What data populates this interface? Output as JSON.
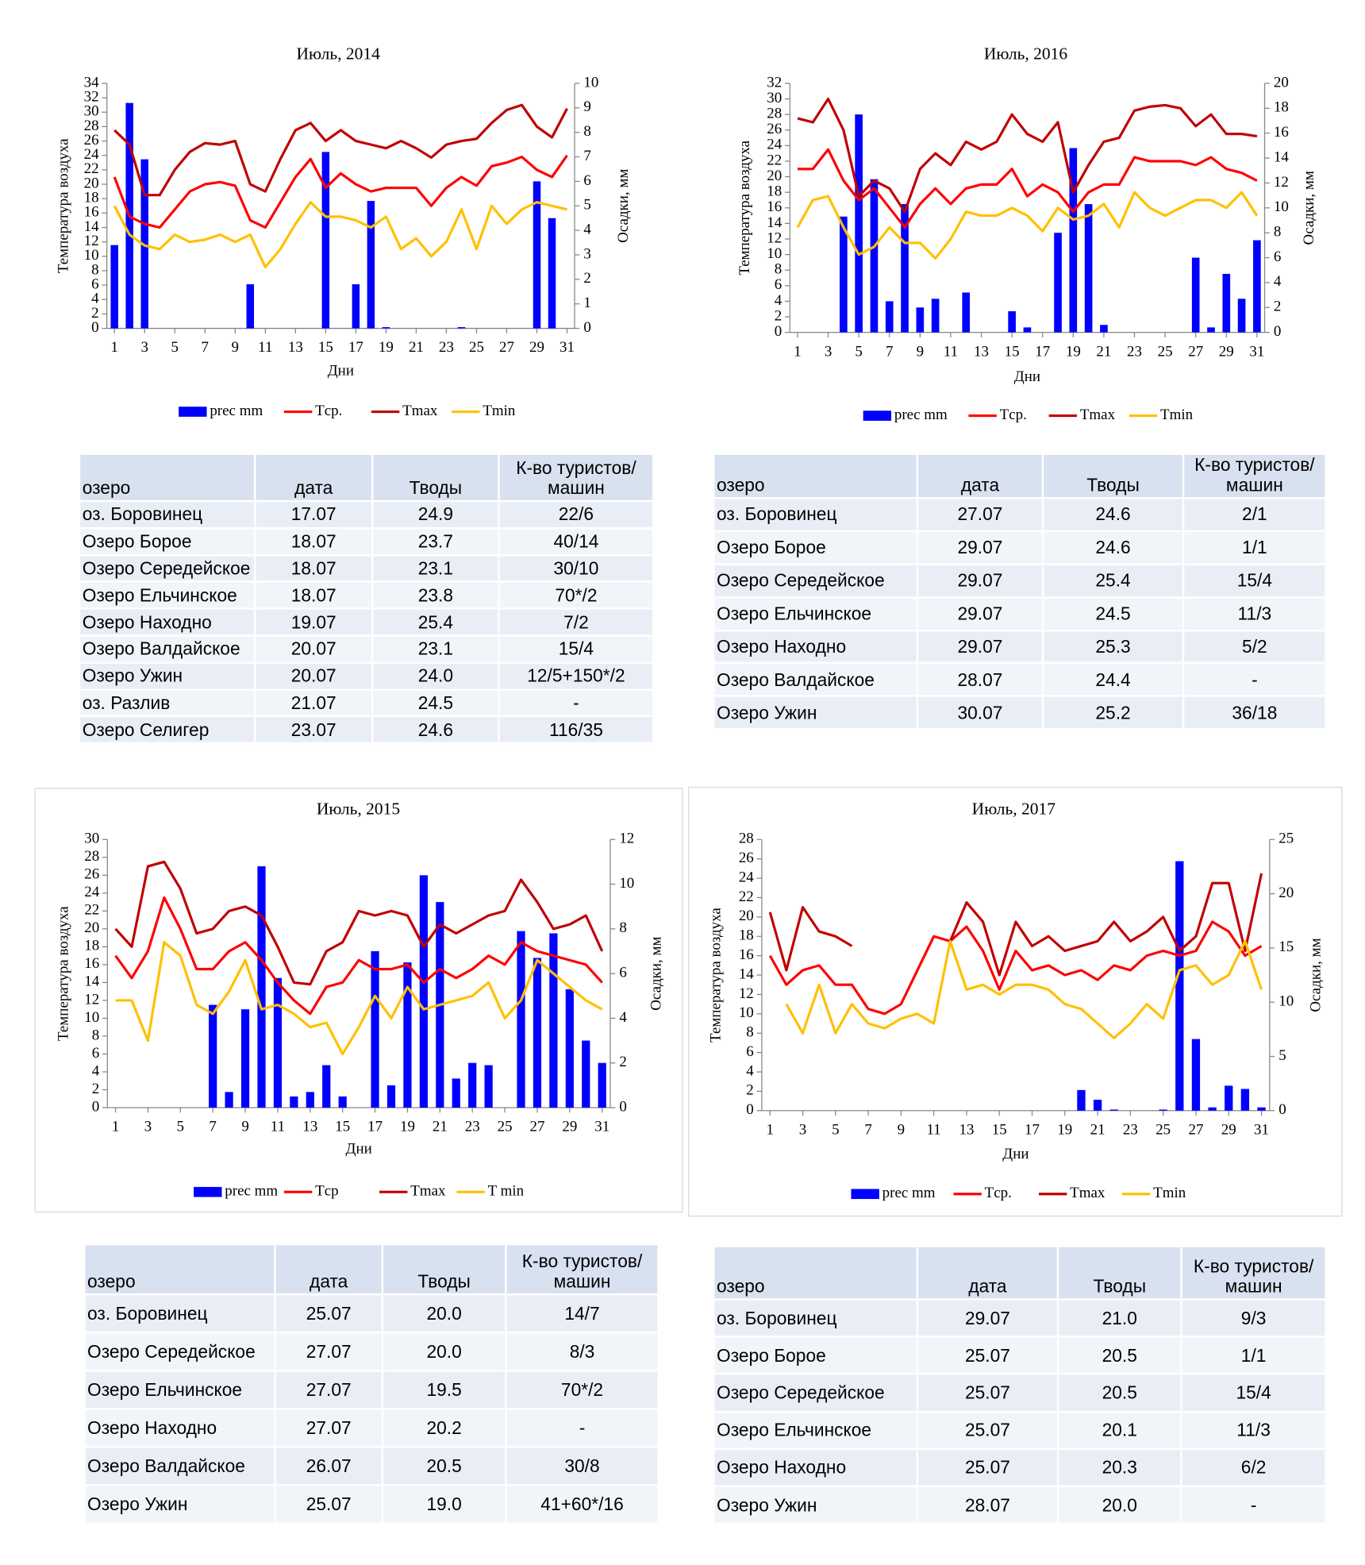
{
  "chart_data": [
    {
      "type": "combo",
      "title": "Июль, 2014",
      "x_label": "Дни",
      "y_label": "Температура воздуха",
      "y2_label": "Осадки, мм",
      "x": [
        1,
        2,
        3,
        4,
        5,
        6,
        7,
        8,
        9,
        10,
        11,
        12,
        13,
        14,
        15,
        16,
        17,
        18,
        19,
        20,
        21,
        22,
        23,
        24,
        25,
        26,
        27,
        28,
        29,
        30,
        31
      ],
      "xlim": [
        0.5,
        31.5
      ],
      "xticks": [
        1,
        3,
        5,
        7,
        9,
        11,
        13,
        15,
        17,
        19,
        21,
        23,
        25,
        27,
        29,
        31
      ],
      "ylim": [
        0,
        34
      ],
      "yticks": [
        0,
        2,
        4,
        6,
        8,
        10,
        12,
        14,
        16,
        18,
        20,
        22,
        24,
        26,
        28,
        30,
        32,
        34
      ],
      "y2lim": [
        0,
        10
      ],
      "y2ticks": [
        0,
        1,
        2,
        3,
        4,
        5,
        6,
        7,
        8,
        9,
        10
      ],
      "series": [
        {
          "name": "prec mm",
          "type": "bar",
          "axis": "y2",
          "color": "#0000ff",
          "values": [
            3.4,
            9.2,
            6.9,
            0,
            0,
            0,
            0,
            0,
            0,
            1.8,
            0,
            0,
            0,
            0,
            7.2,
            0,
            1.8,
            5.2,
            0.05,
            0,
            0,
            0,
            0,
            0.05,
            0,
            0,
            0,
            0,
            6,
            4.5,
            0
          ]
        },
        {
          "name": "Tср.",
          "type": "line",
          "color": "#ff0000",
          "values": [
            21,
            15.5,
            14.5,
            14,
            16.5,
            19,
            20,
            20.3,
            19.8,
            15,
            14,
            17.5,
            21,
            23.5,
            19.5,
            21.5,
            20,
            19,
            19.5,
            19.5,
            19.5,
            17,
            19.5,
            21,
            19.8,
            22.5,
            23,
            23.8,
            22,
            21,
            24
          ]
        },
        {
          "name": "Tmax",
          "type": "line",
          "color": "#c00000",
          "values": [
            27.5,
            25.5,
            18.5,
            18.5,
            22,
            24.5,
            25.7,
            25.5,
            26,
            20,
            19,
            23.5,
            27.5,
            28.5,
            26,
            27.5,
            26,
            25.5,
            25,
            26,
            25,
            23.7,
            25.5,
            26,
            26.3,
            28.5,
            30.3,
            31,
            28,
            26.5,
            30.5
          ]
        },
        {
          "name": "Tmin",
          "type": "line",
          "color": "#ffc000",
          "values": [
            17,
            13,
            11.5,
            11,
            13,
            12,
            12.3,
            13,
            12,
            13,
            8.5,
            11,
            14.5,
            17.5,
            15.5,
            15.5,
            15,
            14,
            15.5,
            11,
            12.5,
            10,
            12,
            16.5,
            11,
            17,
            14.5,
            16.5,
            17.5,
            17,
            16.5
          ]
        }
      ]
    },
    {
      "type": "combo",
      "title": "Июль, 2016",
      "x_label": "Дни",
      "y_label": "Температура воздуха",
      "y2_label": "Осадки, мм",
      "x": [
        1,
        2,
        3,
        4,
        5,
        6,
        7,
        8,
        9,
        10,
        11,
        12,
        13,
        14,
        15,
        16,
        17,
        18,
        19,
        20,
        21,
        22,
        23,
        24,
        25,
        26,
        27,
        28,
        29,
        30,
        31
      ],
      "xlim": [
        0.5,
        31.5
      ],
      "xticks": [
        1,
        3,
        5,
        7,
        9,
        11,
        13,
        15,
        17,
        19,
        21,
        23,
        25,
        27,
        29,
        31
      ],
      "ylim": [
        0,
        32
      ],
      "yticks": [
        0,
        2,
        4,
        6,
        8,
        10,
        12,
        14,
        16,
        18,
        20,
        22,
        24,
        26,
        28,
        30,
        32
      ],
      "y2lim": [
        0,
        20
      ],
      "y2ticks": [
        0,
        2,
        4,
        6,
        8,
        10,
        12,
        14,
        16,
        18,
        20
      ],
      "series": [
        {
          "name": "prec mm",
          "type": "bar",
          "axis": "y2",
          "color": "#0000ff",
          "values": [
            0,
            0,
            0,
            9.3,
            17.5,
            12.3,
            2.5,
            10.3,
            2,
            2.7,
            0,
            3.2,
            0,
            0,
            1.7,
            0.4,
            0,
            8,
            14.8,
            10.3,
            0.6,
            0,
            0,
            0,
            0,
            0,
            6,
            0.4,
            4.7,
            2.7,
            7.4
          ]
        },
        {
          "name": "Tср.",
          "type": "line",
          "color": "#ff0000",
          "values": [
            21,
            21,
            23.5,
            19.5,
            17,
            18.5,
            16,
            13.5,
            16.5,
            18.5,
            16.5,
            18.5,
            19,
            19,
            21,
            17.5,
            19,
            18,
            15.5,
            18,
            19,
            19,
            22.5,
            22,
            22,
            22,
            21.5,
            22.5,
            21,
            20.5,
            19.5
          ]
        },
        {
          "name": "Tmax",
          "type": "line",
          "color": "#c00000",
          "values": [
            27.5,
            27,
            30,
            26,
            17.5,
            19.5,
            18.5,
            15.5,
            21,
            23,
            21.5,
            24.5,
            23.5,
            24.5,
            28,
            25.5,
            24.5,
            27,
            18,
            21.5,
            24.5,
            25,
            28.5,
            29,
            29.2,
            28.8,
            26.5,
            28,
            25.5,
            25.5,
            25.2
          ]
        },
        {
          "name": "Tmin",
          "type": "line",
          "color": "#ffc000",
          "values": [
            13.5,
            17,
            17.5,
            13.5,
            10,
            11,
            13.5,
            11.5,
            11.5,
            9.5,
            12,
            15.5,
            15,
            15,
            16,
            15,
            13,
            16,
            14.5,
            15,
            16.5,
            13.5,
            18,
            16,
            15,
            16,
            17,
            17,
            16,
            18,
            15
          ]
        }
      ]
    },
    {
      "type": "combo",
      "title": "Июль, 2015",
      "x_label": "Дни",
      "y_label": "Температура воздуха",
      "y2_label": "Осадки, мм",
      "x": [
        1,
        2,
        3,
        4,
        5,
        6,
        7,
        8,
        9,
        10,
        11,
        12,
        13,
        14,
        15,
        16,
        17,
        18,
        19,
        20,
        21,
        22,
        23,
        24,
        25,
        26,
        27,
        28,
        29,
        30,
        31
      ],
      "xlim": [
        0.5,
        31.5
      ],
      "xticks": [
        1,
        3,
        5,
        7,
        9,
        11,
        13,
        15,
        17,
        19,
        21,
        23,
        25,
        27,
        29,
        31
      ],
      "ylim": [
        0,
        30
      ],
      "yticks": [
        0,
        2,
        4,
        6,
        8,
        10,
        12,
        14,
        16,
        18,
        20,
        22,
        24,
        26,
        28,
        30
      ],
      "y2lim": [
        0,
        12
      ],
      "y2ticks": [
        0,
        2,
        4,
        6,
        8,
        10,
        12
      ],
      "series": [
        {
          "name": "prec mm",
          "type": "bar",
          "axis": "y2",
          "color": "#0000ff",
          "values": [
            0,
            0,
            0,
            0,
            0,
            0,
            4.6,
            0.7,
            4.4,
            10.8,
            5.8,
            0.5,
            0.7,
            1.9,
            0.5,
            0,
            7,
            1,
            6.5,
            10.4,
            9.2,
            1.3,
            2,
            1.9,
            0,
            7.9,
            6.7,
            7.8,
            5.3,
            3,
            2
          ]
        },
        {
          "name": "Tср",
          "type": "line",
          "color": "#ff0000",
          "values": [
            17,
            14.5,
            17.5,
            23.5,
            20,
            15.5,
            15.5,
            17.5,
            18.5,
            16.5,
            14,
            12,
            10.5,
            13.5,
            14,
            16.5,
            15.5,
            15.5,
            16,
            14,
            15.5,
            14.5,
            15.5,
            17,
            16,
            18.5,
            17.5,
            17,
            16.5,
            16,
            14
          ]
        },
        {
          "name": "Tmax",
          "type": "line",
          "color": "#c00000",
          "values": [
            20,
            18,
            27,
            27.5,
            24.5,
            19.5,
            20,
            22,
            22.5,
            21.5,
            18,
            14,
            13.8,
            17.5,
            18.5,
            22,
            21.5,
            22,
            21.5,
            18,
            20.5,
            19.5,
            20.5,
            21.5,
            22,
            25.5,
            23,
            20,
            20.5,
            21.5,
            17.5
          ]
        },
        {
          "name": "T min",
          "type": "line",
          "color": "#ffc000",
          "values": [
            12,
            12,
            7.5,
            18.5,
            17,
            11.5,
            10.5,
            13,
            16.5,
            11,
            11.5,
            10.5,
            9,
            9.5,
            6,
            9,
            12.5,
            10,
            13.5,
            11,
            11.5,
            12,
            12.5,
            14,
            10,
            12,
            16.5,
            15,
            13.5,
            12,
            11
          ]
        }
      ]
    },
    {
      "type": "combo",
      "title": "Июль, 2017",
      "x_label": "Дни",
      "y_label": "Температура воздуха",
      "y2_label": "Осадки, мм",
      "x": [
        1,
        2,
        3,
        4,
        5,
        6,
        7,
        8,
        9,
        10,
        11,
        12,
        13,
        14,
        15,
        16,
        17,
        18,
        19,
        20,
        21,
        22,
        23,
        24,
        25,
        26,
        27,
        28,
        29,
        30,
        31
      ],
      "xlim": [
        0.5,
        31.5
      ],
      "xticks": [
        1,
        3,
        5,
        7,
        9,
        11,
        13,
        15,
        17,
        19,
        21,
        23,
        25,
        27,
        29,
        31
      ],
      "ylim": [
        0,
        28
      ],
      "yticks": [
        0,
        2,
        4,
        6,
        8,
        10,
        12,
        14,
        16,
        18,
        20,
        22,
        24,
        26,
        28
      ],
      "y2lim": [
        0,
        25
      ],
      "y2ticks": [
        0,
        5,
        10,
        15,
        20,
        25
      ],
      "series": [
        {
          "name": "prec mm",
          "type": "bar",
          "axis": "y2",
          "color": "#0000ff",
          "values": [
            0,
            0,
            0,
            0,
            0,
            0,
            0,
            0,
            0,
            0,
            0,
            0,
            0,
            0,
            0,
            0,
            0,
            0,
            0,
            1.9,
            1,
            0.1,
            0,
            0,
            0.1,
            23,
            6.6,
            0.3,
            2.3,
            2,
            0.3
          ]
        },
        {
          "name": "Tср.",
          "type": "line",
          "color": "#ff0000",
          "values": [
            16,
            13,
            14.5,
            15,
            13,
            13,
            10.5,
            10,
            11,
            14.5,
            18,
            17.5,
            19,
            16.5,
            12.5,
            16.5,
            14.5,
            15,
            14,
            14.5,
            13.5,
            15,
            14.5,
            16,
            16.5,
            16,
            16.5,
            19.5,
            18.5,
            16,
            17
          ]
        },
        {
          "name": "Tmax",
          "type": "line",
          "color": "#c00000",
          "values": [
            20.5,
            14.5,
            21,
            18.5,
            18,
            17,
            null,
            null,
            null,
            null,
            null,
            17.5,
            21.5,
            19.5,
            14,
            19.5,
            17,
            18,
            16.5,
            17,
            17.5,
            19.5,
            17.5,
            18.5,
            20,
            16.5,
            18,
            23.5,
            23.5,
            16.5,
            24.5
          ]
        },
        {
          "name": "Tmin",
          "type": "line",
          "color": "#ffc000",
          "values": [
            null,
            11,
            8,
            13,
            8,
            11,
            9,
            8.5,
            9.5,
            10,
            9,
            17.5,
            12.5,
            13,
            12,
            13,
            13,
            12.5,
            11,
            10.5,
            9,
            7.5,
            9,
            11,
            9.5,
            14.5,
            15,
            13,
            14,
            17.5,
            12.5
          ]
        }
      ]
    }
  ],
  "tables": [
    {
      "header": [
        "озеро",
        "дата",
        "Тводы",
        "К-во туристов/машин"
      ],
      "rows": [
        [
          "оз. Боровинец",
          "17.07",
          "24.9",
          "22/6"
        ],
        [
          "Озеро Борое",
          "18.07",
          "23.7",
          "40/14"
        ],
        [
          "Озеро Середейское",
          "18.07",
          "23.1",
          "30/10"
        ],
        [
          "Озеро Ельчинское",
          "18.07",
          "23.8",
          "70*/2"
        ],
        [
          "Озеро Находно",
          "19.07",
          "25.4",
          "7/2"
        ],
        [
          "Озеро Валдайское",
          "20.07",
          "23.1",
          "15/4"
        ],
        [
          "Озеро Ужин",
          "20.07",
          "24.0",
          "12/5+150*/2"
        ],
        [
          "оз. Разлив",
          "21.07",
          "24.5",
          "-"
        ],
        [
          "Озеро Селигер",
          "23.07",
          "24.6",
          "116/35"
        ]
      ]
    },
    {
      "header": [
        "озеро",
        "дата",
        "Тводы",
        "К-во туристов/ машин"
      ],
      "rows": [
        [
          "оз. Боровинец",
          "27.07",
          "24.6",
          "2/1"
        ],
        [
          "Озеро Борое",
          "29.07",
          "24.6",
          "1/1"
        ],
        [
          "Озеро Середейское",
          "29.07",
          "25.4",
          "15/4"
        ],
        [
          "Озеро Ельчинское",
          "29.07",
          "24.5",
          "11/3"
        ],
        [
          "Озеро Находно",
          "29.07",
          "25.3",
          "5/2"
        ],
        [
          "Озеро Валдайское",
          "28.07",
          "24.4",
          "-"
        ],
        [
          "Озеро Ужин",
          "30.07",
          "25.2",
          "36/18"
        ]
      ]
    },
    {
      "header": [
        "озеро",
        "дата",
        "Тводы",
        "К-во туристов/машин"
      ],
      "rows": [
        [
          "оз. Боровинец",
          "25.07",
          "20.0",
          "14/7"
        ],
        [
          "Озеро Середейское",
          "27.07",
          "20.0",
          "8/3"
        ],
        [
          "Озеро Ельчинское",
          "27.07",
          "19.5",
          "70*/2"
        ],
        [
          "Озеро Находно",
          "27.07",
          "20.2",
          "-"
        ],
        [
          "Озеро Валдайское",
          "26.07",
          "20.5",
          "30/8"
        ],
        [
          "Озеро Ужин",
          "25.07",
          "19.0",
          "41+60*/16"
        ]
      ]
    },
    {
      "header": [
        "озеро",
        "дата",
        "Тводы",
        "К-во туристов/машин"
      ],
      "rows": [
        [
          "оз. Боровинец",
          "29.07",
          "21.0",
          "9/3"
        ],
        [
          "Озеро Борое",
          "25.07",
          "20.5",
          "1/1"
        ],
        [
          "Озеро Середейское",
          "25.07",
          "20.5",
          "15/4"
        ],
        [
          "Озеро Ельчинское",
          "25.07",
          "20.1",
          "11/3"
        ],
        [
          "Озеро Находно",
          "25.07",
          "20.3",
          "6/2"
        ],
        [
          "Озеро Ужин",
          "28.07",
          "20.0",
          "-"
        ]
      ]
    }
  ]
}
